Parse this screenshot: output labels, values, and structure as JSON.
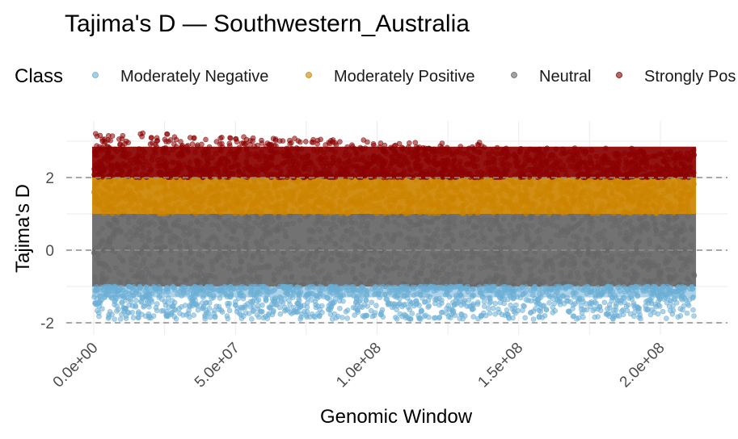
{
  "chart_data": {
    "type": "scatter",
    "title": "Tajima's D — Southwestern_Australia",
    "xlabel": "Genomic Window",
    "ylabel": "Tajima's D",
    "xlim": [
      0,
      210000000
    ],
    "ylim": [
      -2.2,
      3.3
    ],
    "x_ticks": [
      0,
      50000000,
      100000000,
      150000000,
      200000000
    ],
    "x_tick_labels": [
      "0.0e+00",
      "5.0e+07",
      "1.0e+08",
      "1.5e+08",
      "2.0e+08"
    ],
    "y_ticks": [
      -2,
      0,
      2
    ],
    "y_tick_labels": [
      "-2",
      "0",
      "2"
    ],
    "reference_lines": [
      -2,
      0,
      2
    ],
    "grid": true,
    "legend_title": "Class",
    "legend_position": "top",
    "series": [
      {
        "name": "Moderately Negative",
        "color": "#6baed6",
        "y_range": [
          -1.9,
          -1.0
        ],
        "x_range": [
          0,
          210000000
        ]
      },
      {
        "name": "Moderately Positive",
        "color": "#cc8400",
        "y_range": [
          1.0,
          2.0
        ],
        "x_range": [
          0,
          210000000
        ]
      },
      {
        "name": "Neutral",
        "color": "#666666",
        "y_range": [
          -1.0,
          1.0
        ],
        "x_range": [
          0,
          210000000
        ]
      },
      {
        "name": "Strongly Positive",
        "color": "#8b0000",
        "y_range": [
          2.0,
          3.25
        ],
        "x_range": [
          0,
          210000000
        ]
      }
    ],
    "legend_labels_display": [
      "Moderately Negative",
      "Moderately Positive",
      "Neutral",
      "Strongly Pos"
    ]
  }
}
